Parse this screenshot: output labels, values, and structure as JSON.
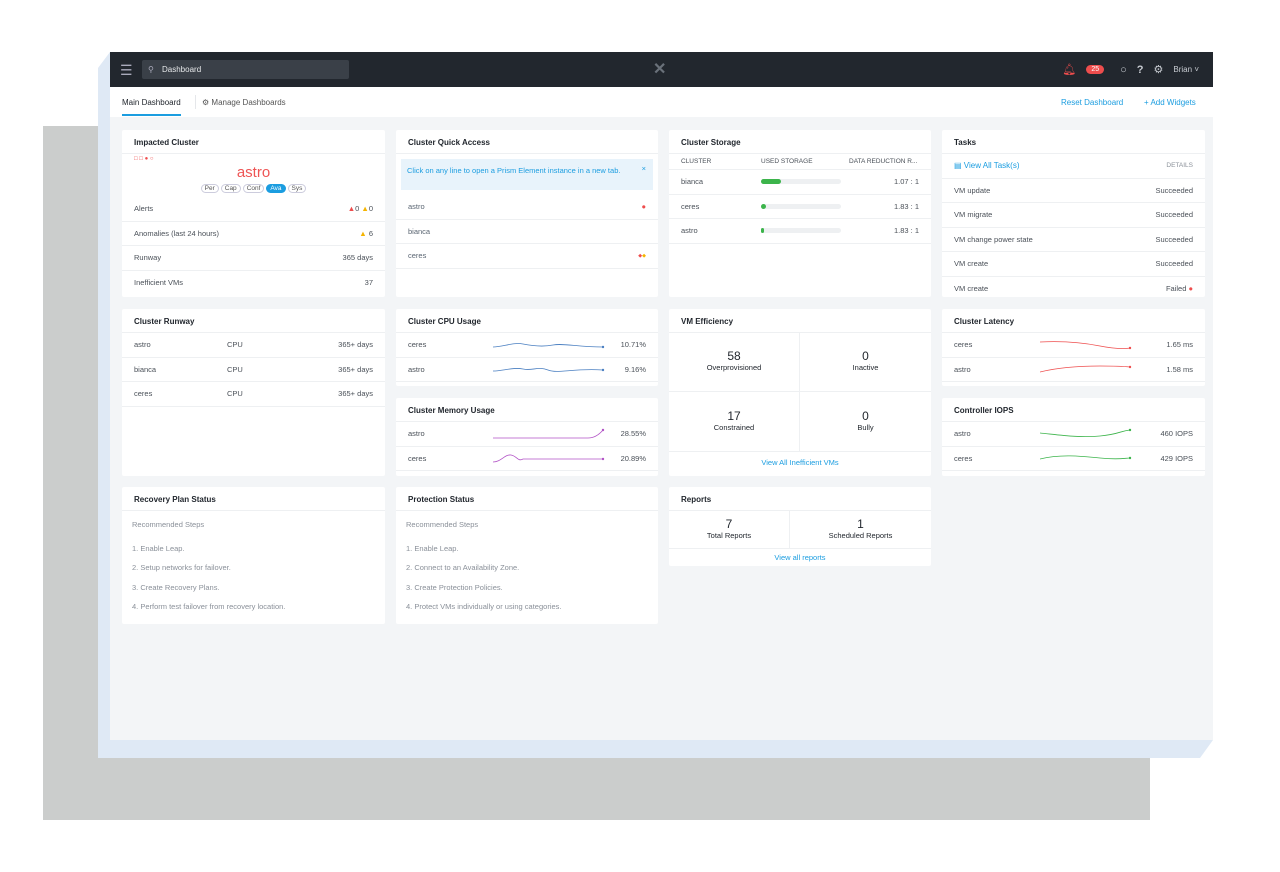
{
  "topbar": {
    "search_value": "Dashboard",
    "notification_count": "25",
    "user": "Brian"
  },
  "tabs": {
    "main": "Main Dashboard",
    "manage": "Manage Dashboards",
    "reset": "Reset Dashboard",
    "add": "+ Add Widgets"
  },
  "impacted": {
    "title": "Impacted Cluster",
    "cluster": "astro",
    "pills": [
      "Per",
      "Cap",
      "Conf",
      "Ava",
      "Sys"
    ],
    "rows": [
      {
        "label": "Alerts",
        "critical": "0",
        "warning": "0"
      },
      {
        "label": "Anomalies (last 24 hours)",
        "value": "6"
      },
      {
        "label": "Runway",
        "value": "365 days"
      },
      {
        "label": "Inefficient VMs",
        "value": "37"
      }
    ]
  },
  "quick": {
    "title": "Cluster Quick Access",
    "info": "Click on any line to open a Prism Element instance in a new tab.",
    "clusters": [
      "astro",
      "bianca",
      "ceres"
    ]
  },
  "storage": {
    "title": "Cluster Storage",
    "headers": [
      "CLUSTER",
      "USED STORAGE",
      "DATA REDUCTION R..."
    ],
    "rows": [
      {
        "name": "bianca",
        "used_pct": 25,
        "ratio": "1.07 : 1"
      },
      {
        "name": "ceres",
        "used_pct": 6,
        "ratio": "1.83 : 1"
      },
      {
        "name": "astro",
        "used_pct": 3,
        "ratio": "1.83 : 1"
      }
    ]
  },
  "tasks": {
    "title": "Tasks",
    "view_all": "View All Task(s)",
    "details": "DETAILS",
    "rows": [
      {
        "name": "VM update",
        "status": "Succeeded"
      },
      {
        "name": "VM migrate",
        "status": "Succeeded"
      },
      {
        "name": "VM change power state",
        "status": "Succeeded"
      },
      {
        "name": "VM create",
        "status": "Succeeded"
      },
      {
        "name": "VM create",
        "status": "Failed"
      }
    ]
  },
  "runway": {
    "title": "Cluster Runway",
    "rows": [
      {
        "name": "astro",
        "type": "CPU",
        "value": "365+ days"
      },
      {
        "name": "bianca",
        "type": "CPU",
        "value": "365+ days"
      },
      {
        "name": "ceres",
        "type": "CPU",
        "value": "365+ days"
      }
    ]
  },
  "cpu": {
    "title": "Cluster CPU Usage",
    "rows": [
      {
        "name": "ceres",
        "value": "10.71%"
      },
      {
        "name": "astro",
        "value": "9.16%"
      }
    ]
  },
  "memory": {
    "title": "Cluster Memory Usage",
    "rows": [
      {
        "name": "astro",
        "value": "28.55%"
      },
      {
        "name": "ceres",
        "value": "20.89%"
      }
    ]
  },
  "vmeff": {
    "title": "VM Efficiency",
    "stats": [
      {
        "value": "58",
        "label": "Overprovisioned"
      },
      {
        "value": "0",
        "label": "Inactive"
      },
      {
        "value": "17",
        "label": "Constrained"
      },
      {
        "value": "0",
        "label": "Bully"
      }
    ],
    "link": "View All Inefficient VMs"
  },
  "latency": {
    "title": "Cluster Latency",
    "rows": [
      {
        "name": "ceres",
        "value": "1.65 ms"
      },
      {
        "name": "astro",
        "value": "1.58 ms"
      }
    ]
  },
  "iops": {
    "title": "Controller IOPS",
    "rows": [
      {
        "name": "astro",
        "value": "460 IOPS"
      },
      {
        "name": "ceres",
        "value": "429 IOPS"
      }
    ]
  },
  "recovery": {
    "title": "Recovery Plan Status",
    "subtitle": "Recommended Steps",
    "steps": [
      "1. Enable Leap.",
      "2. Setup networks for failover.",
      "3. Create Recovery Plans.",
      "4. Perform test failover from recovery location."
    ]
  },
  "protection": {
    "title": "Protection Status",
    "subtitle": "Recommended Steps",
    "steps": [
      "1. Enable Leap.",
      "2. Connect to an Availability Zone.",
      "3. Create Protection Policies.",
      "4. Protect VMs individually or using categories."
    ]
  },
  "reports": {
    "title": "Reports",
    "stats": [
      {
        "value": "7",
        "label": "Total Reports"
      },
      {
        "value": "1",
        "label": "Scheduled Reports"
      }
    ],
    "link": "View all reports"
  }
}
